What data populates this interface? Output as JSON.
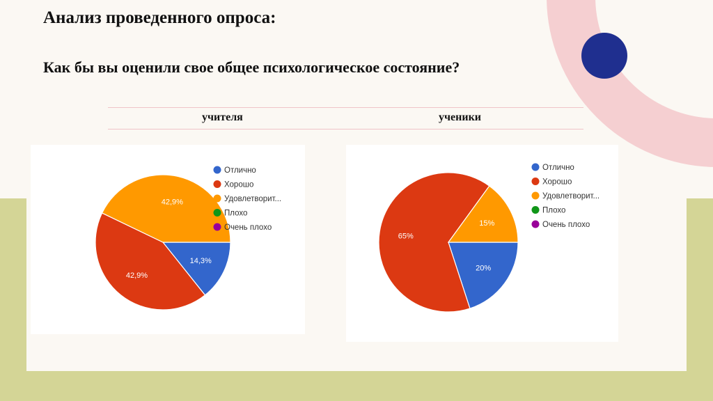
{
  "slide": {
    "title": "Анализ проведенного опроса:",
    "question": "Как бы вы оценили свое общее психологическое состояние?",
    "columns": [
      "учителя",
      "ученики"
    ]
  },
  "colors": {
    "Отлично": "#3366cc",
    "Хорошо": "#dc3912",
    "Удовлетворит...": "#ff9900",
    "Плохо": "#109618",
    "Очень плохо": "#990099",
    "olive": "#d4d596",
    "pink": "#f5cfd1",
    "navy": "#1f2f8f"
  },
  "chart_data": [
    {
      "type": "pie",
      "group": "учителя",
      "legend": [
        "Отлично",
        "Хорошо",
        "Удовлетворит...",
        "Плохо",
        "Очень плохо"
      ],
      "categories": [
        "Отлично",
        "Хорошо",
        "Удовлетворит...",
        "Плохо",
        "Очень плохо"
      ],
      "values": [
        14.3,
        42.9,
        42.9,
        0,
        0
      ],
      "data_labels": [
        "14,3%",
        "42,9%",
        "42,9%",
        "",
        ""
      ],
      "legend_position": "right"
    },
    {
      "type": "pie",
      "group": "ученики",
      "legend": [
        "Отлично",
        "Хорошо",
        "Удовлетворит...",
        "Плохо",
        "Очень плохо"
      ],
      "categories": [
        "Отлично",
        "Хорошо",
        "Удовлетворит...",
        "Плохо",
        "Очень плохо"
      ],
      "values": [
        20,
        65,
        15,
        0,
        0
      ],
      "data_labels": [
        "20%",
        "65%",
        "15%",
        "",
        ""
      ],
      "legend_position": "right"
    }
  ]
}
